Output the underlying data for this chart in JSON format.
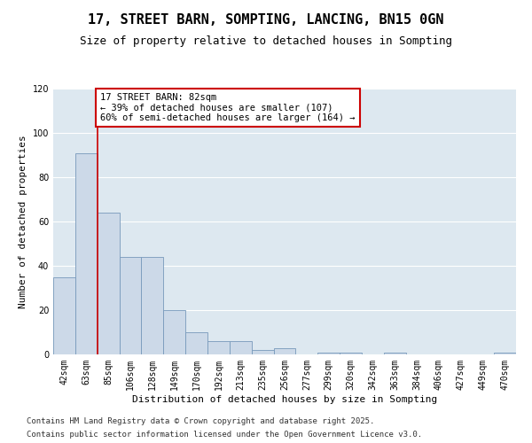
{
  "title": "17, STREET BARN, SOMPTING, LANCING, BN15 0GN",
  "subtitle": "Size of property relative to detached houses in Sompting",
  "xlabel": "Distribution of detached houses by size in Sompting",
  "ylabel": "Number of detached properties",
  "categories": [
    "42sqm",
    "63sqm",
    "85sqm",
    "106sqm",
    "128sqm",
    "149sqm",
    "170sqm",
    "192sqm",
    "213sqm",
    "235sqm",
    "256sqm",
    "277sqm",
    "299sqm",
    "320sqm",
    "342sqm",
    "363sqm",
    "384sqm",
    "406sqm",
    "427sqm",
    "449sqm",
    "470sqm"
  ],
  "values": [
    35,
    91,
    64,
    44,
    44,
    20,
    10,
    6,
    6,
    2,
    3,
    0,
    1,
    1,
    0,
    1,
    0,
    0,
    0,
    0,
    1
  ],
  "bar_color": "#ccd9e8",
  "bar_edge_color": "#7799bb",
  "red_line_x": 1.5,
  "annotation_text": "17 STREET BARN: 82sqm\n← 39% of detached houses are smaller (107)\n60% of semi-detached houses are larger (164) →",
  "annotation_box_color": "#ffffff",
  "annotation_box_edge": "#cc0000",
  "ylim": [
    0,
    120
  ],
  "yticks": [
    0,
    20,
    40,
    60,
    80,
    100,
    120
  ],
  "background_color": "#dde8f0",
  "footer1": "Contains HM Land Registry data © Crown copyright and database right 2025.",
  "footer2": "Contains public sector information licensed under the Open Government Licence v3.0.",
  "title_fontsize": 11,
  "subtitle_fontsize": 9,
  "axis_label_fontsize": 8,
  "tick_fontsize": 7,
  "annotation_fontsize": 7.5,
  "footer_fontsize": 6.5
}
